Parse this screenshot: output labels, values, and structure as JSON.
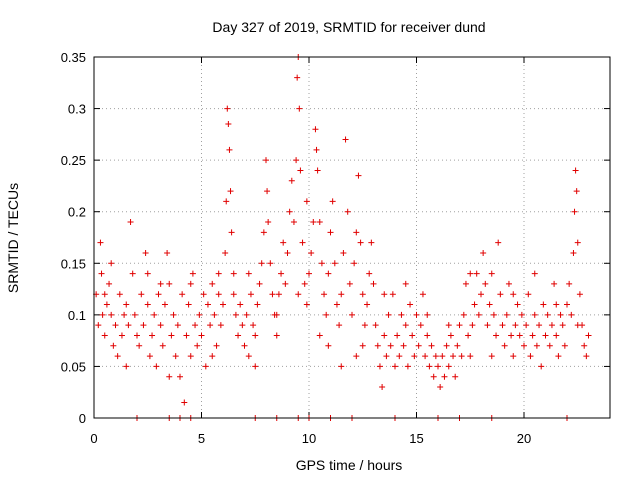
{
  "chart_data": {
    "type": "scatter",
    "title": "Day 327 of 2019, SRMTID for receiver dund",
    "xlabel": "GPS time / hours",
    "ylabel": "SRMTID / TECUs",
    "xlim": [
      0,
      24
    ],
    "ylim": [
      0,
      0.35
    ],
    "xticks": [
      0,
      5,
      10,
      15,
      20
    ],
    "yticks": [
      0,
      0.05,
      0.1,
      0.15,
      0.2,
      0.25,
      0.3,
      0.35
    ],
    "ytick_labels": [
      "0",
      "0.05",
      "0.1",
      "0.15",
      "0.2",
      "0.25",
      "0.3",
      "0.35"
    ],
    "grid": true,
    "marker": "+",
    "series": [
      {
        "name": "SRMTID",
        "color": "#e00000",
        "points": [
          [
            0.1,
            0.12
          ],
          [
            0.2,
            0.09
          ],
          [
            0.3,
            0.17
          ],
          [
            0.35,
            0.14
          ],
          [
            0.4,
            0.1
          ],
          [
            0.5,
            0.08
          ],
          [
            0.6,
            0.11
          ],
          [
            0.7,
            0.13
          ],
          [
            0.8,
            0.1
          ],
          [
            0.9,
            0.07
          ],
          [
            1.0,
            0.09
          ],
          [
            1.1,
            0.06
          ],
          [
            1.2,
            0.12
          ],
          [
            1.3,
            0.08
          ],
          [
            1.4,
            0.1
          ],
          [
            1.5,
            0.11
          ],
          [
            1.6,
            0.09
          ],
          [
            1.7,
            0.19
          ],
          [
            1.8,
            0.14
          ],
          [
            1.9,
            0.1
          ],
          [
            2.0,
            0.08
          ],
          [
            2.1,
            0.07
          ],
          [
            2.2,
            0.12
          ],
          [
            2.3,
            0.09
          ],
          [
            2.4,
            0.16
          ],
          [
            2.5,
            0.11
          ],
          [
            2.6,
            0.06
          ],
          [
            2.7,
            0.08
          ],
          [
            2.8,
            0.1
          ],
          [
            2.9,
            0.05
          ],
          [
            3.0,
            0.12
          ],
          [
            3.1,
            0.09
          ],
          [
            3.2,
            0.07
          ],
          [
            3.3,
            0.11
          ],
          [
            3.4,
            0.16
          ],
          [
            3.5,
            0.13
          ],
          [
            3.6,
            0.08
          ],
          [
            3.7,
            0.1
          ],
          [
            3.8,
            0.06
          ],
          [
            3.9,
            0.09
          ],
          [
            4.0,
            0.04
          ],
          [
            4.1,
            0.12
          ],
          [
            4.2,
            0.015
          ],
          [
            4.3,
            0.08
          ],
          [
            4.4,
            0.11
          ],
          [
            4.5,
            0.06
          ],
          [
            4.6,
            0.14
          ],
          [
            4.7,
            0.09
          ],
          [
            4.8,
            0.07
          ],
          [
            4.9,
            0.1
          ],
          [
            5.0,
            0.08
          ],
          [
            5.1,
            0.12
          ],
          [
            5.2,
            0.05
          ],
          [
            5.3,
            0.11
          ],
          [
            5.4,
            0.09
          ],
          [
            5.5,
            0.13
          ],
          [
            5.6,
            0.1
          ],
          [
            5.7,
            0.07
          ],
          [
            5.8,
            0.12
          ],
          [
            5.9,
            0.09
          ],
          [
            6.0,
            0.11
          ],
          [
            6.1,
            0.16
          ],
          [
            6.15,
            0.21
          ],
          [
            6.2,
            0.3
          ],
          [
            6.25,
            0.285
          ],
          [
            6.3,
            0.26
          ],
          [
            6.35,
            0.22
          ],
          [
            6.4,
            0.18
          ],
          [
            6.5,
            0.14
          ],
          [
            6.6,
            0.1
          ],
          [
            6.7,
            0.08
          ],
          [
            6.8,
            0.11
          ],
          [
            6.9,
            0.09
          ],
          [
            7.0,
            0.07
          ],
          [
            7.1,
            0.1
          ],
          [
            7.2,
            0.06
          ],
          [
            7.3,
            0.12
          ],
          [
            7.4,
            0.09
          ],
          [
            7.5,
            0.08
          ],
          [
            7.6,
            0.11
          ],
          [
            7.7,
            0.13
          ],
          [
            7.8,
            0.15
          ],
          [
            7.9,
            0.18
          ],
          [
            8.0,
            0.25
          ],
          [
            8.05,
            0.22
          ],
          [
            8.1,
            0.19
          ],
          [
            8.2,
            0.15
          ],
          [
            8.3,
            0.12
          ],
          [
            8.4,
            0.1
          ],
          [
            8.5,
            0.08
          ],
          [
            8.6,
            0.12
          ],
          [
            8.7,
            0.14
          ],
          [
            8.8,
            0.17
          ],
          [
            8.9,
            0.13
          ],
          [
            9.0,
            0.16
          ],
          [
            9.1,
            0.2
          ],
          [
            9.2,
            0.23
          ],
          [
            9.3,
            0.19
          ],
          [
            9.4,
            0.25
          ],
          [
            9.45,
            0.33
          ],
          [
            9.5,
            0.35
          ],
          [
            9.55,
            0.3
          ],
          [
            9.6,
            0.24
          ],
          [
            9.7,
            0.17
          ],
          [
            9.8,
            0.13
          ],
          [
            9.9,
            0.11
          ],
          [
            10.0,
            0.14
          ],
          [
            10.1,
            0.16
          ],
          [
            10.2,
            0.19
          ],
          [
            10.3,
            0.28
          ],
          [
            10.35,
            0.26
          ],
          [
            10.4,
            0.24
          ],
          [
            10.5,
            0.19
          ],
          [
            10.6,
            0.15
          ],
          [
            10.7,
            0.12
          ],
          [
            10.8,
            0.1
          ],
          [
            10.9,
            0.14
          ],
          [
            11.0,
            0.18
          ],
          [
            11.1,
            0.21
          ],
          [
            11.2,
            0.15
          ],
          [
            11.3,
            0.11
          ],
          [
            11.4,
            0.09
          ],
          [
            11.5,
            0.12
          ],
          [
            11.6,
            0.16
          ],
          [
            11.7,
            0.27
          ],
          [
            11.8,
            0.2
          ],
          [
            11.9,
            0.13
          ],
          [
            12.0,
            0.1
          ],
          [
            12.1,
            0.15
          ],
          [
            12.2,
            0.18
          ],
          [
            12.3,
            0.235
          ],
          [
            12.4,
            0.17
          ],
          [
            12.5,
            0.12
          ],
          [
            12.6,
            0.09
          ],
          [
            12.7,
            0.11
          ],
          [
            12.8,
            0.14
          ],
          [
            12.9,
            0.17
          ],
          [
            13.0,
            0.13
          ],
          [
            13.1,
            0.09
          ],
          [
            13.2,
            0.07
          ],
          [
            13.3,
            0.05
          ],
          [
            13.4,
            0.03
          ],
          [
            13.5,
            0.08
          ],
          [
            13.6,
            0.06
          ],
          [
            13.7,
            0.1
          ],
          [
            13.8,
            0.07
          ],
          [
            13.9,
            0.12
          ],
          [
            14.0,
            0.05
          ],
          [
            14.1,
            0.08
          ],
          [
            14.2,
            0.06
          ],
          [
            14.3,
            0.1
          ],
          [
            14.4,
            0.07
          ],
          [
            14.5,
            0.09
          ],
          [
            14.6,
            0.05
          ],
          [
            14.7,
            0.11
          ],
          [
            14.8,
            0.08
          ],
          [
            14.9,
            0.06
          ],
          [
            15.0,
            0.1
          ],
          [
            15.1,
            0.07
          ],
          [
            15.2,
            0.09
          ],
          [
            15.3,
            0.12
          ],
          [
            15.4,
            0.06
          ],
          [
            15.5,
            0.08
          ],
          [
            15.6,
            0.05
          ],
          [
            15.7,
            0.07
          ],
          [
            15.8,
            0.04
          ],
          [
            15.9,
            0.06
          ],
          [
            16.0,
            0.05
          ],
          [
            16.1,
            0.03
          ],
          [
            16.2,
            0.06
          ],
          [
            16.3,
            0.04
          ],
          [
            16.4,
            0.07
          ],
          [
            16.5,
            0.05
          ],
          [
            16.6,
            0.08
          ],
          [
            16.7,
            0.06
          ],
          [
            16.8,
            0.04
          ],
          [
            16.9,
            0.07
          ],
          [
            17.0,
            0.09
          ],
          [
            17.1,
            0.06
          ],
          [
            17.2,
            0.1
          ],
          [
            17.3,
            0.13
          ],
          [
            17.4,
            0.08
          ],
          [
            17.5,
            0.06
          ],
          [
            17.6,
            0.09
          ],
          [
            17.7,
            0.11
          ],
          [
            17.8,
            0.14
          ],
          [
            17.9,
            0.1
          ],
          [
            18.0,
            0.12
          ],
          [
            18.1,
            0.16
          ],
          [
            18.2,
            0.13
          ],
          [
            18.3,
            0.09
          ],
          [
            18.4,
            0.11
          ],
          [
            18.5,
            0.14
          ],
          [
            18.6,
            0.1
          ],
          [
            18.7,
            0.08
          ],
          [
            18.8,
            0.17
          ],
          [
            18.9,
            0.12
          ],
          [
            19.0,
            0.09
          ],
          [
            19.1,
            0.07
          ],
          [
            19.2,
            0.1
          ],
          [
            19.3,
            0.13
          ],
          [
            19.4,
            0.08
          ],
          [
            19.5,
            0.06
          ],
          [
            19.6,
            0.09
          ],
          [
            19.7,
            0.11
          ],
          [
            19.8,
            0.08
          ],
          [
            19.9,
            0.1
          ],
          [
            20.0,
            0.07
          ],
          [
            20.1,
            0.09
          ],
          [
            20.2,
            0.12
          ],
          [
            20.3,
            0.06
          ],
          [
            20.4,
            0.08
          ],
          [
            20.5,
            0.1
          ],
          [
            20.6,
            0.07
          ],
          [
            20.7,
            0.09
          ],
          [
            20.8,
            0.05
          ],
          [
            20.9,
            0.11
          ],
          [
            21.0,
            0.08
          ],
          [
            21.1,
            0.1
          ],
          [
            21.2,
            0.07
          ],
          [
            21.3,
            0.09
          ],
          [
            21.4,
            0.13
          ],
          [
            21.5,
            0.08
          ],
          [
            21.6,
            0.06
          ],
          [
            21.7,
            0.1
          ],
          [
            21.8,
            0.09
          ],
          [
            21.9,
            0.07
          ],
          [
            22.0,
            0.11
          ],
          [
            22.1,
            0.13
          ],
          [
            22.2,
            0.1
          ],
          [
            22.3,
            0.16
          ],
          [
            22.35,
            0.2
          ],
          [
            22.4,
            0.24
          ],
          [
            22.45,
            0.22
          ],
          [
            22.5,
            0.17
          ],
          [
            22.6,
            0.12
          ],
          [
            22.7,
            0.09
          ],
          [
            22.8,
            0.07
          ],
          [
            22.9,
            0.06
          ],
          [
            23.0,
            0.08
          ],
          [
            0.5,
            0.12
          ],
          [
            1.5,
            0.05
          ],
          [
            2.5,
            0.14
          ],
          [
            3.5,
            0.04
          ],
          [
            4.5,
            0.13
          ],
          [
            5.5,
            0.06
          ],
          [
            6.5,
            0.12
          ],
          [
            7.5,
            0.05
          ],
          [
            8.5,
            0.1
          ],
          [
            9.5,
            0.12
          ],
          [
            10.5,
            0.08
          ],
          [
            11.5,
            0.05
          ],
          [
            12.5,
            0.07
          ],
          [
            13.5,
            0.12
          ],
          [
            14.5,
            0.13
          ],
          [
            15.5,
            0.1
          ],
          [
            16.5,
            0.09
          ],
          [
            17.5,
            0.14
          ],
          [
            18.5,
            0.06
          ],
          [
            19.5,
            0.12
          ],
          [
            20.5,
            0.14
          ],
          [
            21.5,
            0.11
          ],
          [
            22.5,
            0.09
          ],
          [
            0.8,
            0.15
          ],
          [
            3.1,
            0.13
          ],
          [
            5.8,
            0.14
          ],
          [
            7.2,
            0.14
          ],
          [
            9.9,
            0.21
          ],
          [
            10.9,
            0.07
          ],
          [
            12.2,
            0.06
          ],
          [
            2.0,
            0.0
          ],
          [
            3.5,
            0.0
          ],
          [
            4.0,
            0.0
          ],
          [
            4.5,
            0.0
          ],
          [
            7.5,
            0.0
          ],
          [
            8.5,
            0.0
          ],
          [
            9.5,
            0.0
          ],
          [
            10.0,
            0.0
          ],
          [
            11.0,
            0.0
          ],
          [
            12.0,
            0.0
          ],
          [
            14.0,
            0.0
          ],
          [
            16.0,
            0.0
          ],
          [
            17.0,
            0.0
          ],
          [
            18.5,
            0.0
          ],
          [
            22.0,
            0.0
          ]
        ]
      }
    ]
  }
}
